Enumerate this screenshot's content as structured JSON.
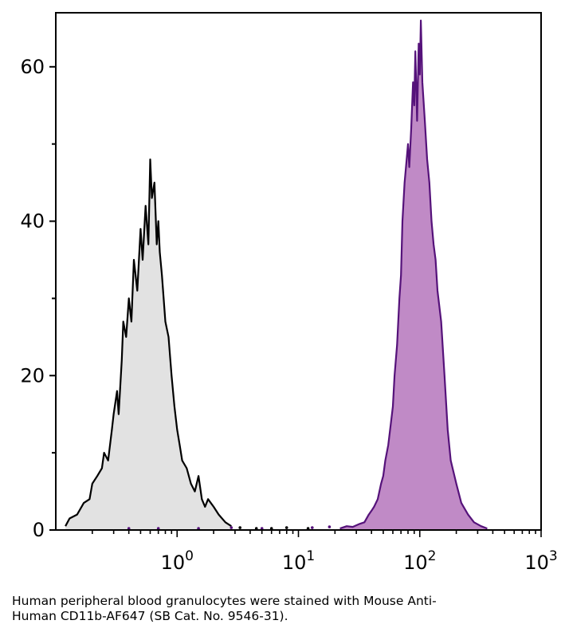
{
  "chart_data": {
    "type": "area",
    "title": "",
    "xlabel": "",
    "ylabel": "",
    "x_scale": "log",
    "xlim": [
      0.1,
      1000
    ],
    "ylim": [
      0,
      67
    ],
    "x_ticks": [
      {
        "value": 1,
        "base": "10",
        "exp": "0"
      },
      {
        "value": 10,
        "base": "10",
        "exp": "1"
      },
      {
        "value": 100,
        "base": "10",
        "exp": "2"
      },
      {
        "value": 1000,
        "base": "10",
        "exp": "3"
      }
    ],
    "y_ticks": [
      {
        "value": 0,
        "label": "0"
      },
      {
        "value": 20,
        "label": "20"
      },
      {
        "value": 40,
        "label": "40"
      },
      {
        "value": 60,
        "label": "60"
      }
    ],
    "grid": false,
    "legend": "none",
    "series": [
      {
        "role": "control",
        "color": "#000000",
        "fill": "#e2e2e2",
        "x": [
          0.12,
          0.13,
          0.15,
          0.17,
          0.19,
          0.2,
          0.22,
          0.24,
          0.25,
          0.27,
          0.29,
          0.3,
          0.32,
          0.33,
          0.35,
          0.36,
          0.38,
          0.4,
          0.42,
          0.44,
          0.47,
          0.5,
          0.52,
          0.55,
          0.58,
          0.6,
          0.62,
          0.65,
          0.68,
          0.7,
          0.72,
          0.75,
          0.8,
          0.85,
          0.9,
          0.95,
          1.0,
          1.05,
          1.1,
          1.2,
          1.3,
          1.4,
          1.5,
          1.6,
          1.7,
          1.8,
          2.0,
          2.2,
          2.5,
          2.8
        ],
        "y": [
          0.5,
          1.5,
          2,
          3.5,
          4,
          6,
          7,
          8,
          10,
          9,
          13,
          15,
          18,
          15,
          22,
          27,
          25,
          30,
          27,
          35,
          31,
          39,
          35,
          42,
          37,
          48,
          43,
          45,
          37,
          40,
          36,
          33,
          27,
          25,
          20,
          16,
          13,
          11,
          9,
          8,
          6,
          5,
          7,
          4,
          3,
          4,
          3,
          2,
          1,
          0.5
        ],
        "scatter": [
          [
            3.3,
            0.3
          ],
          [
            4.5,
            0.2
          ],
          [
            6.0,
            0.2
          ],
          [
            8.0,
            0.3
          ],
          [
            12.0,
            0.2
          ]
        ]
      },
      {
        "role": "stained",
        "color": "#55127a",
        "fill": "#c08ac6",
        "x": [
          22,
          25,
          28,
          32,
          35,
          38,
          40,
          42,
          45,
          48,
          50,
          52,
          55,
          58,
          60,
          62,
          65,
          68,
          70,
          72,
          75,
          78,
          80,
          82,
          85,
          88,
          90,
          92,
          95,
          98,
          100,
          102,
          105,
          110,
          115,
          120,
          125,
          130,
          135,
          140,
          150,
          160,
          170,
          180,
          200,
          220,
          250,
          280,
          320,
          360
        ],
        "y": [
          0.2,
          0.5,
          0.4,
          0.8,
          1,
          2,
          2.5,
          3,
          4,
          6,
          7,
          9,
          11,
          14,
          16,
          20,
          24,
          30,
          33,
          40,
          45,
          48,
          50,
          47,
          52,
          58,
          55,
          62,
          53,
          63,
          59,
          66,
          58,
          53,
          48,
          45,
          40,
          37,
          35,
          31,
          27,
          20,
          13,
          9,
          6,
          3.5,
          2,
          1,
          0.5,
          0.2
        ],
        "scatter": [
          [
            0.4,
            0.2
          ],
          [
            0.7,
            0.2
          ],
          [
            1.5,
            0.2
          ],
          [
            2.8,
            0.3
          ],
          [
            5.0,
            0.2
          ],
          [
            13.0,
            0.3
          ],
          [
            18.0,
            0.4
          ]
        ]
      }
    ]
  },
  "caption": {
    "line1": "Human peripheral blood granulocytes were stained with Mouse Anti-",
    "line2": "Human CD11b-AF647 (SB Cat. No. 9546-31)."
  }
}
